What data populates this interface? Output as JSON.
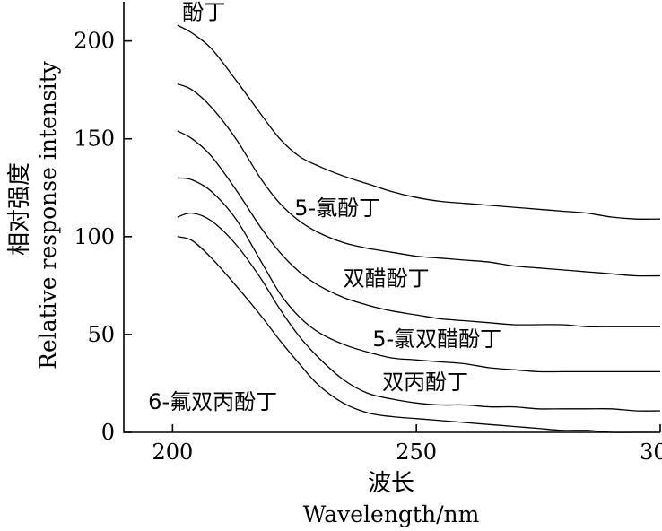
{
  "chart_data": {
    "type": "line",
    "title": "",
    "xlabel": "波长",
    "xlabel_en": "Wavelength/nm",
    "ylabel": "相对强度",
    "ylabel_en": "Relative response intensity",
    "xlim": [
      190,
      300
    ],
    "ylim": [
      0,
      220
    ],
    "xticks": [
      200,
      250,
      300
    ],
    "yticks": [
      0,
      50,
      100,
      150,
      200
    ],
    "grid": false,
    "series": [
      {
        "name": "酚丁",
        "x": [
          201,
          204,
          208,
          213,
          218,
          222,
          226,
          230,
          235,
          240,
          245,
          250,
          255,
          260,
          265,
          270,
          275,
          280,
          285,
          290,
          295,
          300
        ],
        "y": [
          208,
          204,
          196,
          180,
          163,
          150,
          141,
          136,
          131,
          127,
          123,
          120,
          118,
          117,
          116,
          115,
          114,
          113,
          112,
          110,
          109,
          109
        ]
      },
      {
        "name": "5-氯酚丁",
        "x": [
          201,
          204,
          208,
          213,
          218,
          222,
          226,
          230,
          235,
          240,
          245,
          250,
          255,
          260,
          265,
          270,
          275,
          280,
          285,
          290,
          295,
          300
        ],
        "y": [
          178,
          175,
          166,
          150,
          130,
          117,
          108,
          102,
          97,
          94,
          92,
          90,
          89,
          88,
          87,
          85,
          84,
          83,
          82,
          81,
          80,
          80
        ]
      },
      {
        "name": "双醋酚丁",
        "x": [
          201,
          204,
          208,
          213,
          218,
          222,
          226,
          230,
          235,
          240,
          245,
          250,
          255,
          260,
          265,
          270,
          275,
          280,
          285,
          290,
          295,
          300
        ],
        "y": [
          154,
          150,
          141,
          124,
          105,
          92,
          82,
          75,
          69,
          65,
          62,
          60,
          58,
          57,
          56,
          55,
          55,
          55,
          54,
          54,
          54,
          54
        ]
      },
      {
        "name": "5-氯双醋酚丁",
        "x": [
          201,
          204,
          208,
          213,
          218,
          222,
          226,
          230,
          235,
          240,
          245,
          250,
          255,
          260,
          265,
          270,
          275,
          280,
          285,
          290,
          295,
          300
        ],
        "y": [
          130,
          129,
          123,
          109,
          88,
          71,
          59,
          51,
          45,
          41,
          38,
          37,
          36,
          35,
          33,
          32,
          31,
          31,
          31,
          31,
          31,
          31
        ]
      },
      {
        "name": "双丙酚丁",
        "x": [
          201,
          204,
          208,
          213,
          218,
          222,
          226,
          230,
          235,
          240,
          245,
          250,
          255,
          260,
          265,
          270,
          275,
          280,
          285,
          290,
          295,
          300
        ],
        "y": [
          110,
          112,
          108,
          96,
          79,
          63,
          49,
          38,
          27,
          20,
          17,
          15,
          14,
          14,
          13,
          13,
          12,
          12,
          12,
          12,
          11,
          11
        ]
      },
      {
        "name": "6-氟双丙酚丁",
        "x": [
          201,
          204,
          208,
          213,
          218,
          222,
          226,
          230,
          235,
          240,
          245,
          250,
          255,
          260,
          265,
          270,
          275,
          280,
          285,
          290,
          295,
          300
        ],
        "y": [
          100,
          98,
          89,
          75,
          60,
          47,
          35,
          24,
          15,
          10,
          8,
          7,
          6,
          5,
          4,
          3,
          2,
          1,
          1,
          0,
          0,
          0
        ]
      }
    ],
    "labels": [
      {
        "series": "酚丁",
        "x": 202,
        "y": 211
      },
      {
        "series": "5-氯酚丁",
        "x": 225,
        "y": 111
      },
      {
        "series": "双醋酚丁",
        "x": 235,
        "y": 75
      },
      {
        "series": "5-氯双醋酚丁",
        "x": 241,
        "y": 44
      },
      {
        "series": "双丙酚丁",
        "x": 243,
        "y": 22
      },
      {
        "series": "6-氟双丙酚丁",
        "x": 195,
        "y": 12
      }
    ]
  }
}
